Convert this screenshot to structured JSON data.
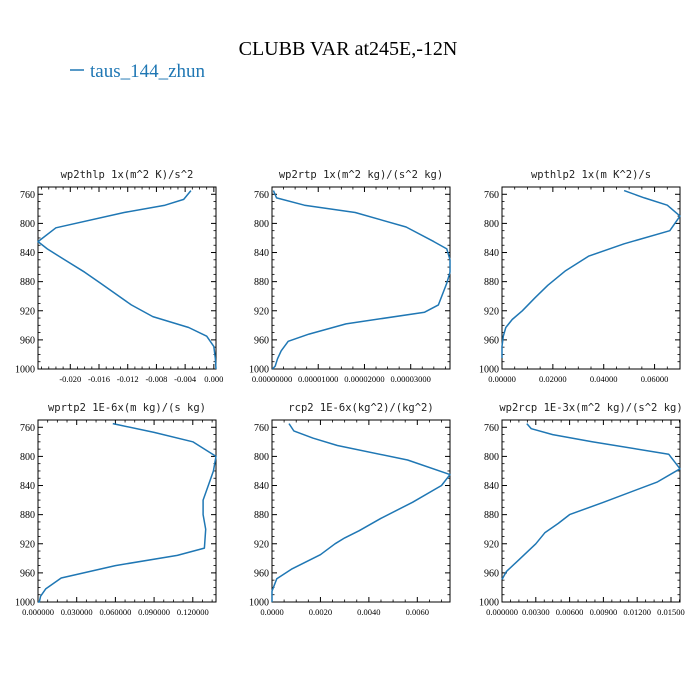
{
  "figure": {
    "title": "CLUBB VAR at245E,-12N",
    "legend_label": "taus_144_zhun",
    "series_color": "#1f77b4"
  },
  "chart_data": [
    {
      "type": "line",
      "title": "wp2thlp  1x(m^2 K)/s^2",
      "xlim": [
        -0.0245,
        0.0003
      ],
      "ylim": [
        750,
        1000
      ],
      "x_ticks": [
        -0.02,
        -0.016,
        -0.012,
        -0.008,
        -0.004,
        0.0
      ],
      "x_tick_labels": [
        "-0.020",
        "-0.016",
        "-0.012",
        "-0.008",
        "-0.004",
        "0.000"
      ],
      "y_ticks": [
        760,
        800,
        840,
        880,
        920,
        960,
        1000
      ],
      "y_tick_labels": [
        "760",
        "800",
        "840",
        "880",
        "920",
        "960",
        "1000"
      ],
      "series": [
        {
          "x": [
            -0.0032,
            -0.0042,
            -0.0068,
            -0.0125,
            -0.022,
            -0.0245,
            -0.0232,
            -0.0208,
            -0.018,
            -0.0158,
            -0.0115,
            -0.0085,
            -0.0035,
            -0.001,
            0.0,
            0.0002,
            0.0003
          ],
          "y": [
            755,
            767,
            775,
            785,
            806,
            825,
            835,
            850,
            867,
            882,
            912,
            928,
            943,
            955,
            969,
            985,
            1000
          ]
        }
      ]
    },
    {
      "type": "line",
      "title": "wp2rtp  1x(m^2 kg)/(s^2 kg)",
      "xlim": [
        0,
        3.85e-05
      ],
      "ylim": [
        750,
        1000
      ],
      "x_ticks": [
        0,
        1e-05,
        2e-05,
        3e-05
      ],
      "x_tick_labels": [
        "0.00000000",
        "0.00001000",
        "0.00002000",
        "0.00003000"
      ],
      "y_ticks": [
        760,
        800,
        840,
        880,
        920,
        960,
        1000
      ],
      "y_tick_labels": [
        "760",
        "800",
        "840",
        "880",
        "920",
        "960",
        "1000"
      ],
      "series": [
        {
          "x": [
            3e-07,
            1e-06,
            7e-06,
            1.8e-05,
            2.9e-05,
            3.5e-05,
            3.78e-05,
            3.85e-05,
            3.85e-05,
            3.78e-05,
            3.6e-05,
            3.3e-05,
            1.6e-05,
            8e-06,
            3.5e-06,
            2e-06,
            1.2e-06,
            7e-07,
            1e-07
          ],
          "y": [
            755,
            765,
            775,
            785,
            805,
            825,
            835,
            850,
            867,
            882,
            912,
            922,
            938,
            952,
            962,
            975,
            986,
            996,
            1000
          ]
        }
      ]
    },
    {
      "type": "line",
      "title": "wpthlp2  1x(m K^2)/s",
      "xlim": [
        0,
        0.07
      ],
      "ylim": [
        750,
        1000
      ],
      "x_ticks": [
        0,
        0.02,
        0.04,
        0.06
      ],
      "x_tick_labels": [
        "0.00000",
        "0.02000",
        "0.04000",
        "0.06000"
      ],
      "y_ticks": [
        760,
        800,
        840,
        880,
        920,
        960,
        1000
      ],
      "y_tick_labels": [
        "760",
        "800",
        "840",
        "880",
        "920",
        "960",
        "1000"
      ],
      "series": [
        {
          "x": [
            0.048,
            0.056,
            0.065,
            0.07,
            0.066,
            0.048,
            0.034,
            0.025,
            0.018,
            0.013,
            0.008,
            0.004,
            0.0015,
            0.0005,
            0.0,
            0.0
          ],
          "y": [
            755,
            765,
            775,
            790,
            810,
            828,
            845,
            865,
            885,
            902,
            920,
            932,
            943,
            955,
            969,
            985
          ]
        }
      ]
    },
    {
      "type": "line",
      "title": "wprtp2  1E-6x(m kg)/(s kg)",
      "xlim": [
        0,
        0.138
      ],
      "ylim": [
        750,
        1000
      ],
      "x_ticks": [
        0,
        0.03,
        0.06,
        0.09,
        0.12
      ],
      "x_tick_labels": [
        "0.000000",
        "0.030000",
        "0.060000",
        "0.090000",
        "0.120000"
      ],
      "y_ticks": [
        760,
        800,
        840,
        880,
        920,
        960,
        1000
      ],
      "y_tick_labels": [
        "760",
        "800",
        "840",
        "880",
        "920",
        "960",
        "1000"
      ],
      "series": [
        {
          "x": [
            0.058,
            0.09,
            0.12,
            0.138,
            0.136,
            0.132,
            0.128,
            0.128,
            0.13,
            0.129,
            0.108,
            0.06,
            0.018,
            0.006,
            0.002,
            0.001,
            0.0
          ],
          "y": [
            755,
            767,
            780,
            800,
            820,
            840,
            860,
            880,
            900,
            926,
            936,
            950,
            967,
            982,
            992,
            1000,
            1000
          ]
        }
      ]
    },
    {
      "type": "line",
      "title": "rcp2  1E-6x(kg^2)/(kg^2)",
      "xlim": [
        0,
        0.00735
      ],
      "ylim": [
        750,
        1000
      ],
      "x_ticks": [
        0,
        0.002,
        0.004,
        0.006
      ],
      "x_tick_labels": [
        "0.0000",
        "0.0020",
        "0.0040",
        "0.0060"
      ],
      "y_ticks": [
        760,
        800,
        840,
        880,
        920,
        960,
        1000
      ],
      "y_tick_labels": [
        "760",
        "800",
        "840",
        "880",
        "920",
        "960",
        "1000"
      ],
      "series": [
        {
          "x": [
            0.0007,
            0.0009,
            0.0017,
            0.0027,
            0.0056,
            0.00735,
            0.007,
            0.0058,
            0.0045,
            0.0036,
            0.003,
            0.0026,
            0.002,
            0.0008,
            0.0002,
            0.0,
            0.0
          ],
          "y": [
            755,
            765,
            775,
            785,
            805,
            825,
            840,
            863,
            885,
            902,
            912,
            920,
            935,
            955,
            968,
            985,
            1000
          ]
        }
      ]
    },
    {
      "type": "line",
      "title": "wp2rcp  1E-3x(m^2 kg)/(s^2 kg)",
      "xlim": [
        0,
        0.0158
      ],
      "ylim": [
        750,
        1000
      ],
      "x_ticks": [
        0,
        0.003,
        0.006,
        0.009,
        0.012,
        0.015
      ],
      "x_tick_labels": [
        "0.000000",
        "0.00300",
        "0.00600",
        "0.00900",
        "0.01200",
        "0.01500"
      ],
      "y_ticks": [
        760,
        800,
        840,
        880,
        920,
        960,
        1000
      ],
      "y_tick_labels": [
        "760",
        "800",
        "840",
        "880",
        "920",
        "960",
        "1000"
      ],
      "series": [
        {
          "x": [
            0.0022,
            0.0026,
            0.0045,
            0.008,
            0.0148,
            0.0158,
            0.0138,
            0.009,
            0.006,
            0.005,
            0.0038,
            0.003,
            0.0015,
            0.0004,
            0.0
          ],
          "y": [
            755,
            762,
            770,
            780,
            797,
            817,
            835,
            863,
            880,
            892,
            905,
            920,
            942,
            958,
            969
          ]
        }
      ]
    }
  ]
}
